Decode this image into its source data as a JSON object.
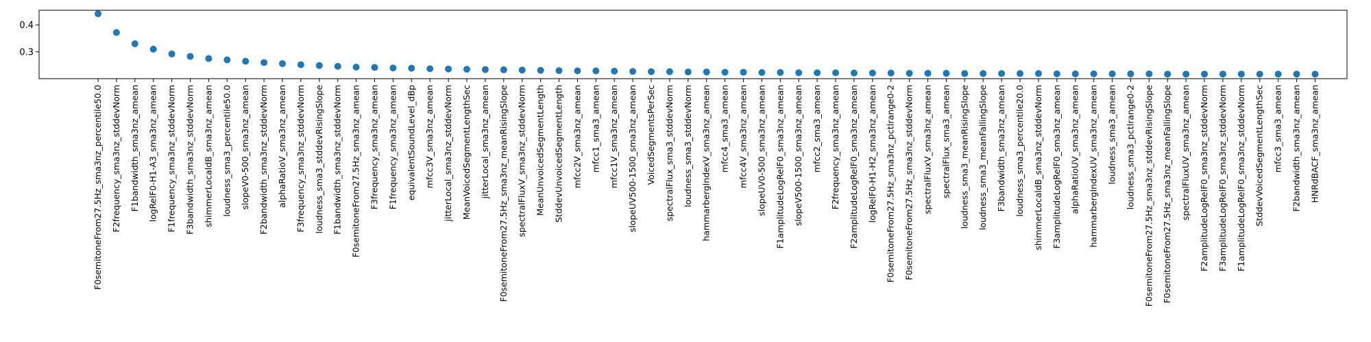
{
  "chart_data": {
    "type": "scatter",
    "title": "",
    "xlabel": "",
    "ylabel": "",
    "ylim": [
      0.2,
      0.455
    ],
    "yticks": [
      0.3,
      0.4
    ],
    "ytick_labels": [
      "0.3",
      "0.4"
    ],
    "grid": false,
    "marker_color": "#1f77b4",
    "categories": [
      "F0semitoneFrom27.5Hz_sma3nz_percentile50.0",
      "F2frequency_sma3nz_stddevNorm",
      "F1bandwidth_sma3nz_amean",
      "logRelF0-H1-A3_sma3nz_amean",
      "F1frequency_sma3nz_stddevNorm",
      "F3bandwidth_sma3nz_stddevNorm",
      "shimmerLocaldB_sma3nz_amean",
      "loudness_sma3_percentile50.0",
      "slopeV0-500_sma3nz_amean",
      "F2bandwidth_sma3nz_stddevNorm",
      "alphaRatioV_sma3nz_amean",
      "F3frequency_sma3nz_stddevNorm",
      "loudness_sma3_stddevRisingSlope",
      "F1bandwidth_sma3nz_stddevNorm",
      "F0semitoneFrom27.5Hz_sma3nz_amean",
      "F3frequency_sma3nz_amean",
      "F1frequency_sma3nz_amean",
      "equivalentSoundLevel_dBp",
      "mfcc3V_sma3nz_amean",
      "jitterLocal_sma3nz_stddevNorm",
      "MeanVoicedSegmentLengthSec",
      "jitterLocal_sma3nz_amean",
      "F0semitoneFrom27.5Hz_sma3nz_meanRisingSlope",
      "spectralFluxV_sma3nz_stddevNorm",
      "MeanUnvoicedSegmentLength",
      "StddevUnvoicedSegmentLength",
      "mfcc2V_sma3nz_amean",
      "mfcc1_sma3_amean",
      "mfcc1V_sma3nz_amean",
      "slopeUV500-1500_sma3nz_amean",
      "VoicedSegmentsPerSec",
      "spectralFlux_sma3_stddevNorm",
      "loudness_sma3_stddevNorm",
      "hammarbergIndexV_sma3nz_amean",
      "mfcc4_sma3_amean",
      "mfcc4V_sma3nz_amean",
      "slopeUV0-500_sma3nz_amean",
      "F1amplitudeLogRelF0_sma3nz_amean",
      "slopeV500-1500_sma3nz_amean",
      "mfcc2_sma3_amean",
      "F2frequency_sma3nz_amean",
      "F2amplitudeLogRelF0_sma3nz_amean",
      "logRelF0-H1-H2_sma3nz_amean",
      "F0semitoneFrom27.5Hz_sma3nz_pctlrange0-2",
      "F0semitoneFrom27.5Hz_sma3nz_stddevNorm",
      "spectralFluxV_sma3nz_amean",
      "spectralFlux_sma3_amean",
      "loudness_sma3_meanRisingSlope",
      "loudness_sma3_meanFallingSlope",
      "F3bandwidth_sma3nz_amean",
      "loudness_sma3_percentile20.0",
      "shimmerLocaldB_sma3nz_stddevNorm",
      "F3amplitudeLogRelF0_sma3nz_amean",
      "alphaRatioUV_sma3nz_amean",
      "hammarbergIndexUV_sma3nz_amean",
      "loudness_sma3_amean",
      "loudness_sma3_pctlrange0-2",
      "F0semitoneFrom27.5Hz_sma3nz_stddevRisingSlope",
      "F0semitoneFrom27.5Hz_sma3nz_meanFallingSlope",
      "spectralFluxUV_sma3nz_amean",
      "F2amplitudeLogRelF0_sma3nz_stddevNorm",
      "F3amplitudeLogRelF0_sma3nz_stddevNorm",
      "F1amplitudeLogRelF0_sma3nz_stddevNorm",
      "StddevVoicedSegmentLengthSec",
      "mfcc3_sma3_amean",
      "F2bandwidth_sma3nz_amean",
      "HNRdBACF_sma3nz_amean"
    ],
    "values": [
      0.442,
      0.372,
      0.33,
      0.31,
      0.292,
      0.283,
      0.275,
      0.27,
      0.265,
      0.26,
      0.256,
      0.252,
      0.249,
      0.246,
      0.243,
      0.242,
      0.24,
      0.239,
      0.237,
      0.236,
      0.235,
      0.234,
      0.233,
      0.232,
      0.231,
      0.23,
      0.229,
      0.229,
      0.228,
      0.227,
      0.226,
      0.226,
      0.225,
      0.225,
      0.224,
      0.224,
      0.223,
      0.223,
      0.222,
      0.222,
      0.222,
      0.221,
      0.221,
      0.221,
      0.22,
      0.22,
      0.22,
      0.219,
      0.219,
      0.219,
      0.219,
      0.219,
      0.218,
      0.218,
      0.218,
      0.218,
      0.218,
      0.218,
      0.217,
      0.217,
      0.217,
      0.217,
      0.217,
      0.217,
      0.217,
      0.217,
      0.217
    ]
  }
}
